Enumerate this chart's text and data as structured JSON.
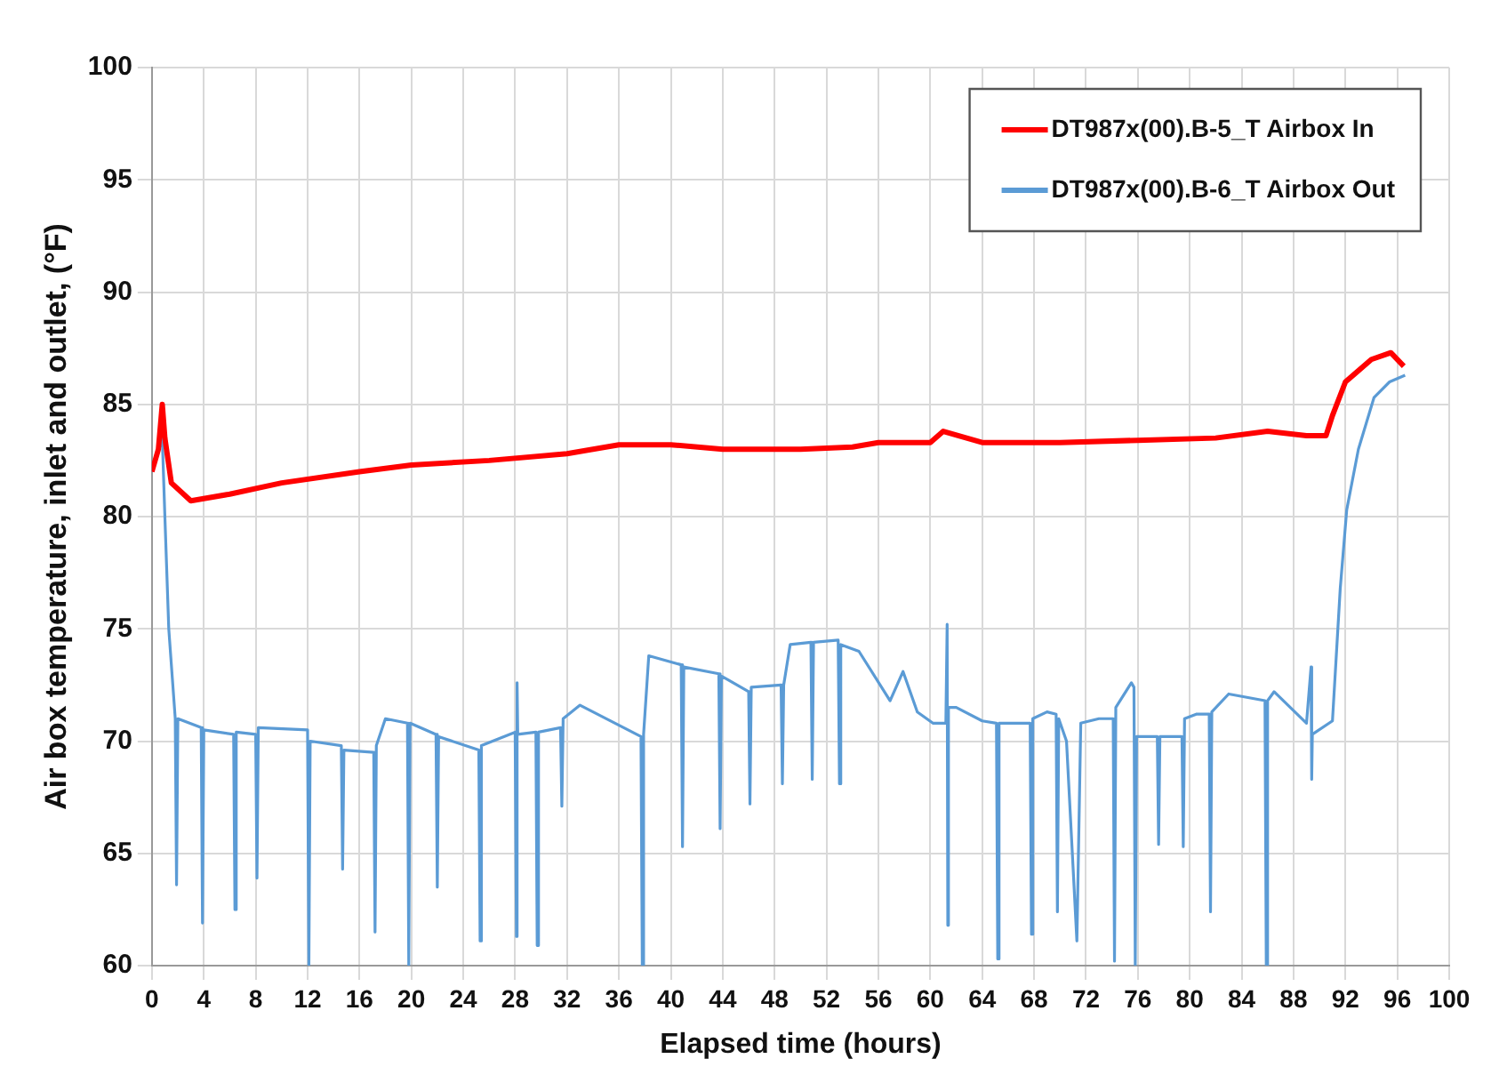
{
  "chart_data": {
    "type": "line",
    "xlabel": "Elapsed time (hours)",
    "ylabel": "Air box temperature, inlet and outlet, (°F)",
    "xlim": [
      0,
      100
    ],
    "xticks": [
      0,
      4,
      8,
      12,
      16,
      20,
      24,
      28,
      32,
      36,
      40,
      44,
      48,
      52,
      56,
      60,
      64,
      68,
      72,
      76,
      80,
      84,
      88,
      92,
      96,
      100
    ],
    "ylim": [
      60,
      100
    ],
    "yticks": [
      60,
      65,
      70,
      75,
      80,
      85,
      90,
      95,
      100
    ],
    "grid": true,
    "legend": "top right",
    "marker": "none",
    "line_style": "solid",
    "series": [
      {
        "name": "DT987x(00).B-5_T Airbox In",
        "color": "#ff0000",
        "x": [
          0,
          0.5,
          0.8,
          1,
          1.5,
          3,
          6,
          10,
          16,
          20,
          26,
          32,
          36,
          40,
          44,
          50,
          54,
          56,
          60,
          61,
          64,
          70,
          76,
          82,
          86,
          89,
          90.5,
          91,
          92,
          94,
          95.5,
          96.5
        ],
        "values": [
          82,
          83,
          85,
          83.5,
          81.5,
          80.7,
          81,
          81.5,
          82,
          82.3,
          82.5,
          82.8,
          83.2,
          83.2,
          83,
          83,
          83.1,
          83.3,
          83.3,
          83.8,
          83.3,
          83.3,
          83.4,
          83.5,
          83.8,
          83.6,
          83.6,
          84.5,
          86,
          87,
          87.3,
          86.7
        ]
      },
      {
        "name": "DT987x(00).B-6_T Airbox Out",
        "color": "#5b9bd5",
        "x": [
          0,
          0.8,
          1,
          1.3,
          1.8,
          1.9,
          2,
          3.8,
          3.9,
          4,
          6.3,
          6.4,
          6.5,
          8,
          8.1,
          8.2,
          12,
          12.1,
          12.2,
          14.6,
          14.7,
          14.8,
          17.1,
          17.2,
          17.3,
          18,
          19.7,
          19.8,
          19.9,
          21.9,
          22,
          22.1,
          25.2,
          25.3,
          25.4,
          28,
          28.1,
          28.15,
          28.2,
          29.6,
          29.7,
          29.8,
          31.5,
          31.6,
          31.7,
          33,
          37.7,
          37.8,
          37.9,
          38.3,
          40.8,
          40.9,
          41,
          43.7,
          43.8,
          43.9,
          46,
          46.1,
          46.2,
          48.5,
          48.6,
          48.7,
          49.2,
          50.8,
          50.9,
          51,
          52.9,
          53,
          53.1,
          54.5,
          56.9,
          57.9,
          59,
          60.2,
          61.2,
          61.3,
          61.35,
          61.4,
          62,
          64,
          65.1,
          65.2,
          65.3,
          67.7,
          67.8,
          67.9,
          69,
          69.7,
          69.8,
          69.9,
          70.5,
          71.3,
          71.6,
          73,
          74.1,
          74.2,
          74.3,
          75.5,
          75.7,
          75.8,
          75.9,
          77.5,
          77.6,
          77.7,
          79.4,
          79.5,
          79.6,
          80.5,
          81.5,
          81.6,
          81.7,
          83,
          85.8,
          85.9,
          86,
          86.5,
          89,
          89.35,
          89.4,
          89.45,
          91,
          91.6,
          92.1,
          93,
          94.2,
          95.4,
          96.6
        ],
        "values": [
          82,
          83.5,
          80,
          75,
          71,
          63.6,
          71,
          70.6,
          61.9,
          70.5,
          70.3,
          62.5,
          70.4,
          70.3,
          63.9,
          70.6,
          70.5,
          60,
          70,
          69.8,
          64.3,
          69.6,
          69.5,
          61.5,
          69.8,
          71,
          70.8,
          60,
          70.8,
          70.3,
          63.5,
          70.2,
          69.6,
          61.1,
          69.8,
          70.4,
          61.3,
          72.6,
          70.3,
          70.4,
          60.9,
          70.4,
          70.6,
          67.1,
          71,
          71.6,
          70.2,
          60,
          70.3,
          73.8,
          73.4,
          65.3,
          73.3,
          73,
          66.1,
          72.9,
          72.2,
          67.2,
          72.4,
          72.5,
          68.1,
          72.5,
          74.3,
          74.4,
          68.3,
          74.4,
          74.5,
          68.1,
          74.3,
          74,
          71.8,
          73.1,
          71.3,
          70.8,
          70.8,
          75.2,
          61.8,
          71.5,
          71.5,
          70.9,
          70.8,
          60.3,
          70.8,
          70.8,
          61.4,
          71,
          71.3,
          71.2,
          62.4,
          71,
          70,
          61.1,
          70.8,
          71,
          71,
          60.2,
          71.5,
          72.6,
          72.4,
          60,
          70.2,
          70.2,
          65.4,
          70.2,
          70.2,
          65.3,
          71,
          71.2,
          71.2,
          62.4,
          71.3,
          72.1,
          71.8,
          60,
          71.8,
          72.2,
          70.8,
          73.3,
          68.3,
          70.3,
          70.9,
          76.8,
          80.3,
          83,
          85.3,
          86,
          86.3
        ]
      }
    ]
  }
}
